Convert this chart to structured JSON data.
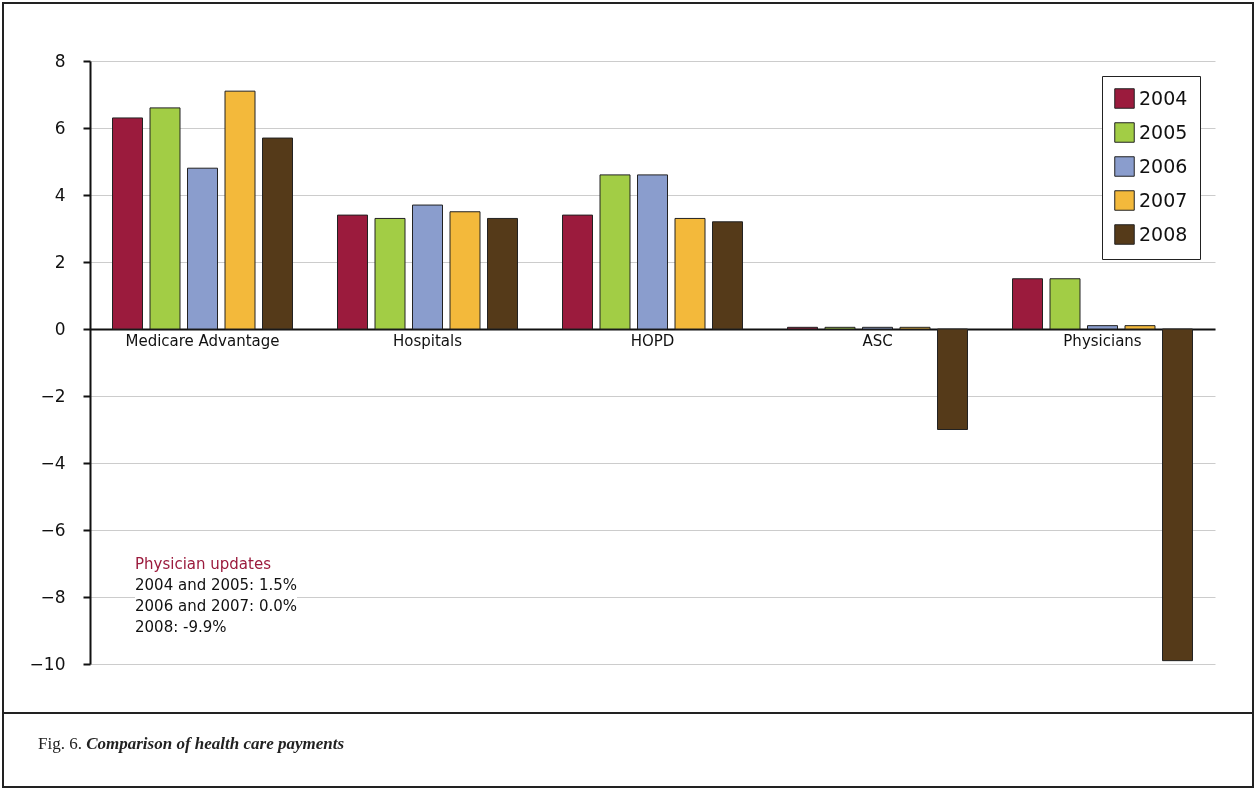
{
  "chart_data": {
    "type": "bar",
    "categories": [
      "Medicare Advantage",
      "Hospitals",
      "HOPD",
      "ASC",
      "Physicians"
    ],
    "series": [
      {
        "name": "2004",
        "color": "#9b1b3d",
        "values": [
          6.3,
          3.4,
          3.4,
          0.05,
          1.5
        ]
      },
      {
        "name": "2005",
        "color": "#a2cd45",
        "values": [
          6.6,
          3.3,
          4.6,
          0.05,
          1.5
        ]
      },
      {
        "name": "2006",
        "color": "#8a9dcd",
        "values": [
          4.8,
          3.7,
          4.6,
          0.05,
          0.1
        ]
      },
      {
        "name": "2007",
        "color": "#f3b93b",
        "values": [
          7.1,
          3.5,
          3.3,
          0.05,
          0.1
        ]
      },
      {
        "name": "2008",
        "color": "#553a19",
        "values": [
          5.7,
          3.3,
          3.2,
          -3.0,
          -9.9
        ]
      }
    ],
    "ylim": [
      -10,
      8
    ],
    "yticks": [
      -10,
      -8,
      -6,
      -4,
      -2,
      0,
      2,
      4,
      6,
      8
    ],
    "grid": "y",
    "legend": "top right",
    "annotations": [
      "Physician updates",
      "2004 and 2005: 1.5%",
      "2006 and 2007: 0.0%",
      "2008: -9.9%",
      "Fig. 6. Comparison of health care payments"
    ]
  }
}
